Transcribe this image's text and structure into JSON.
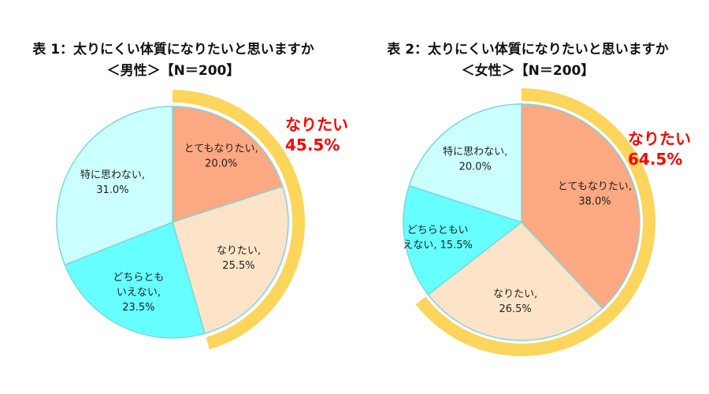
{
  "chart_data": [
    {
      "type": "pie",
      "title": "表 1：太りにくい体質になりたいと思いますか",
      "subtitle": "＜男性＞【N＝200】",
      "slices": [
        {
          "name": "とてもなりたい",
          "value": 20.0,
          "value_label": "20.0%",
          "label_lines": [
            "とてもなりたい,",
            "20.0%"
          ],
          "color": "#fca882"
        },
        {
          "name": "なりたい",
          "value": 25.5,
          "value_label": "25.5%",
          "label_lines": [
            "なりたい,",
            "25.5%"
          ],
          "color": "#fde3c8"
        },
        {
          "name": "どちらともいえない",
          "value": 23.5,
          "value_label": "23.5%",
          "label_lines": [
            "どちらとも",
            "いえない,",
            "23.5%"
          ],
          "color": "#66ffff"
        },
        {
          "name": "特に思わない",
          "value": 31.0,
          "value_label": "31.0%",
          "label_lines": [
            "特に思わない,",
            "31.0%"
          ],
          "color": "#ccffff"
        }
      ],
      "callout": {
        "label": "なりたい",
        "value": 45.5,
        "value_label": "45.5%",
        "text_color": "#ff0000",
        "arc_color": "#fcd55c"
      }
    },
    {
      "type": "pie",
      "title": "表 2：太りにくい体質になりたいと思いますか",
      "subtitle": "＜女性＞【N＝200】",
      "slices": [
        {
          "name": "とてもなりたい",
          "value": 38.0,
          "value_label": "38.0%",
          "label_lines": [
            "とてもなりたい,",
            "38.0%"
          ],
          "color": "#fca882"
        },
        {
          "name": "なりたい",
          "value": 26.5,
          "value_label": "26.5%",
          "label_lines": [
            "なりたい,",
            "26.5%"
          ],
          "color": "#fde3c8"
        },
        {
          "name": "どちらともいえない",
          "value": 15.5,
          "value_label": "15.5%",
          "label_lines": [
            "どちらともい",
            "えない, 15.5%"
          ],
          "color": "#66ffff"
        },
        {
          "name": "特に思わない",
          "value": 20.0,
          "value_label": "20.0%",
          "label_lines": [
            "特に思わない,",
            "20.0%"
          ],
          "color": "#ccffff"
        }
      ],
      "callout": {
        "label": "なりたい",
        "value": 64.5,
        "value_label": "64.5%",
        "text_color": "#ff0000",
        "arc_color": "#fcd55c"
      }
    }
  ],
  "slice_border_color": "#7fd6dc"
}
